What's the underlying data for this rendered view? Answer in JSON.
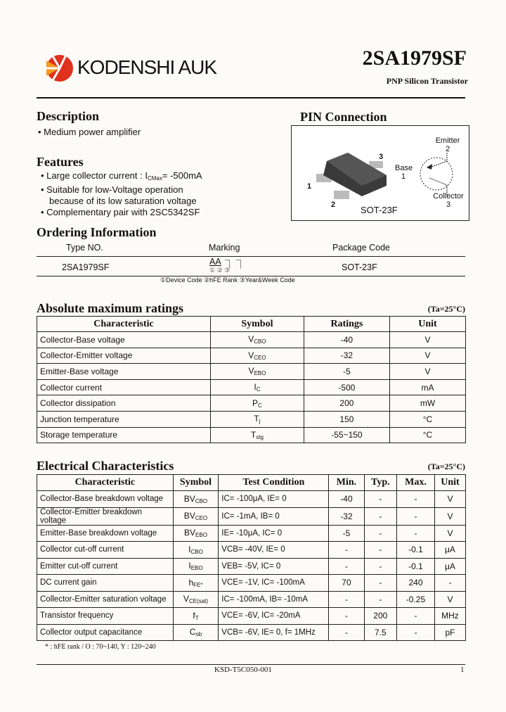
{
  "header": {
    "company": "KODENSHI AUK",
    "part": "2SA1979SF",
    "subtitle": "PNP Silicon Transistor"
  },
  "description": {
    "title": "Description",
    "items": [
      "Medium power amplifier"
    ]
  },
  "features": {
    "title": "Features",
    "items": [
      {
        "pre": "Large collector current : I",
        "sub": "CMax",
        "post": "= -500mA"
      },
      {
        "pre": "Suitable for low-Voltage operation",
        "sub": "",
        "post": ""
      },
      {
        "pre": "because of its low saturation voltage",
        "sub": "",
        "post": "",
        "indent": true
      },
      {
        "pre": "Complementary pair with 2SC5342SF",
        "sub": "",
        "post": ""
      }
    ]
  },
  "pin": {
    "title": "PIN Connection",
    "package": "SOT-23F",
    "pins": [
      "1",
      "2",
      "3"
    ],
    "emitter": "Emitter",
    "emitter_no": "2",
    "base": "Base",
    "base_no": "1",
    "collector": "Collector",
    "collector_no": "3"
  },
  "ordering": {
    "title": "Ordering Information",
    "headers": [
      "Type NO.",
      "Marking",
      "Package Code"
    ],
    "type": "2SA1979SF",
    "marking": "AA",
    "marking_nums": "① ② ③",
    "package": "SOT-23F",
    "note": "①Device Code ②hFE Rank ③Year&Week Code"
  },
  "abs": {
    "title": "Absolute maximum ratings",
    "cond": "(Ta=25°C)",
    "headers": [
      "Characteristic",
      "Symbol",
      "Ratings",
      "Unit"
    ],
    "rows": [
      {
        "c": "Collector-Base voltage",
        "s": "V",
        "ss": "CBO",
        "r": "-40",
        "u": "V"
      },
      {
        "c": "Collector-Emitter voltage",
        "s": "V",
        "ss": "CEO",
        "r": "-32",
        "u": "V"
      },
      {
        "c": "Emitter-Base voltage",
        "s": "V",
        "ss": "EBO",
        "r": "-5",
        "u": "V"
      },
      {
        "c": "Collector current",
        "s": "I",
        "ss": "C",
        "r": "-500",
        "u": "mA"
      },
      {
        "c": "Collector dissipation",
        "s": "P",
        "ss": "C",
        "r": "200",
        "u": "mW"
      },
      {
        "c": "Junction temperature",
        "s": "T",
        "ss": "j",
        "r": "150",
        "u": "°C"
      },
      {
        "c": "Storage temperature",
        "s": "T",
        "ss": "stg",
        "r": "-55~150",
        "u": "°C"
      }
    ]
  },
  "elec": {
    "title": "Electrical Characteristics",
    "cond": "(Ta=25°C)",
    "headers": [
      "Characteristic",
      "Symbol",
      "Test Condition",
      "Min.",
      "Typ.",
      "Max.",
      "Unit"
    ],
    "rows": [
      {
        "c": "Collector-Base breakdown voltage",
        "s": "BV",
        "ss": "CBO",
        "t": "IC= -100μA, IE= 0",
        "min": "-40",
        "typ": "-",
        "max": "-",
        "u": "V"
      },
      {
        "c": "Collector-Emitter breakdown voltage",
        "s": "BV",
        "ss": "CEO",
        "t": "IC= -1mA, IB= 0",
        "min": "-32",
        "typ": "-",
        "max": "-",
        "u": "V"
      },
      {
        "c": "Emitter-Base breakdown voltage",
        "s": "BV",
        "ss": "EBO",
        "t": "IE= -10μA, IC= 0",
        "min": "-5",
        "typ": "-",
        "max": "-",
        "u": "V"
      },
      {
        "c": "Collector cut-off current",
        "s": "I",
        "ss": "CBO",
        "t": "VCB= -40V, IE= 0",
        "min": "-",
        "typ": "-",
        "max": "-0.1",
        "u": "μA"
      },
      {
        "c": "Emitter cut-off current",
        "s": "I",
        "ss": "EBO",
        "t": "VEB= -5V, IC= 0",
        "min": "-",
        "typ": "-",
        "max": "-0.1",
        "u": "μA"
      },
      {
        "c": "DC current gain",
        "s": "h",
        "ss": "FE*",
        "t": "VCE= -1V, IC= -100mA",
        "min": "70",
        "typ": "-",
        "max": "240",
        "u": "-"
      },
      {
        "c": "Collector-Emitter saturation voltage",
        "s": "V",
        "ss": "CE(sat)",
        "t": "IC= -100mA, IB= -10mA",
        "min": "-",
        "typ": "-",
        "max": "-0.25",
        "u": "V"
      },
      {
        "c": "Transistor frequency",
        "s": "f",
        "ss": "T",
        "t": "VCE= -6V, IC= -20mA",
        "min": "-",
        "typ": "200",
        "max": "-",
        "u": "MHz"
      },
      {
        "c": "Collector output capacitance",
        "s": "C",
        "ss": "ob",
        "t": "VCB= -6V, IE= 0, f= 1MHz",
        "min": "-",
        "typ": "7.5",
        "max": "-",
        "u": "pF"
      }
    ],
    "note": "* : hFE rank / O : 70~140, Y : 120~240"
  },
  "footer": {
    "code": "KSD-T5C050-001",
    "page": "1"
  },
  "colors": {
    "logo_red": "#e0301e",
    "logo_orange": "#f39a1e"
  }
}
